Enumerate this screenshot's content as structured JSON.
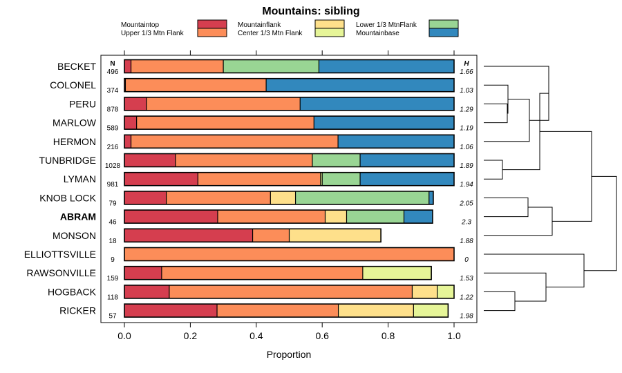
{
  "chart_data": {
    "type": "bar",
    "stacked": true,
    "orientation": "horizontal",
    "title": "Mountains: sibling",
    "xlabel": "Proportion",
    "xlim": [
      0,
      1
    ],
    "xticks": [
      "0.0",
      "0.2",
      "0.4",
      "0.6",
      "0.8",
      "1.0"
    ],
    "n_header": "N",
    "h_header": "H",
    "highlight": "ABRAM",
    "legend": [
      {
        "name": "Mountaintop",
        "color": "#d53e4f"
      },
      {
        "name": "Upper 1/3 Mtn Flank",
        "color": "#fc8d59"
      },
      {
        "name": "Mountainflank",
        "color": "#fee08b"
      },
      {
        "name": "Center 1/3 Mtn Flank",
        "color": "#e6f598"
      },
      {
        "name": "Lower 1/3 MtnFlank",
        "color": "#99d594"
      },
      {
        "name": "Mountainbase",
        "color": "#3288bd"
      }
    ],
    "rows": [
      {
        "name": "BECKET",
        "n": "496",
        "h": "1.66",
        "values": [
          0.02,
          0.28,
          0,
          0,
          0.29,
          0.41
        ]
      },
      {
        "name": "COLONEL",
        "n": "374",
        "h": "1.03",
        "values": [
          0.003,
          0.427,
          0,
          0,
          0,
          0.57
        ]
      },
      {
        "name": "PERU",
        "n": "878",
        "h": "1.29",
        "values": [
          0.067,
          0.466,
          0,
          0,
          0,
          0.467
        ]
      },
      {
        "name": "MARLOW",
        "n": "589",
        "h": "1.19",
        "values": [
          0.037,
          0.538,
          0,
          0,
          0,
          0.425
        ]
      },
      {
        "name": "HERMON",
        "n": "216",
        "h": "1.06",
        "values": [
          0.02,
          0.628,
          0,
          0,
          0,
          0.352
        ]
      },
      {
        "name": "TUNBRIDGE",
        "n": "1028",
        "h": "1.89",
        "values": [
          0.155,
          0.415,
          0,
          0,
          0.145,
          0.285
        ]
      },
      {
        "name": "LYMAN",
        "n": "981",
        "h": "1.94",
        "values": [
          0.223,
          0.372,
          0,
          0.005,
          0.115,
          0.285
        ]
      },
      {
        "name": "KNOB LOCK",
        "n": "79",
        "h": "2.05",
        "values": [
          0.127,
          0.316,
          0.076,
          0,
          0.405,
          0.013
        ]
      },
      {
        "name": "ABRAM",
        "n": "46",
        "h": "2.3",
        "values": [
          0.283,
          0.326,
          0.065,
          0,
          0.174,
          0.087
        ]
      },
      {
        "name": "MONSON",
        "n": "18",
        "h": "1.88",
        "values": [
          0.389,
          0.111,
          0.278,
          0,
          0,
          0
        ]
      },
      {
        "name": "ELLIOTTSVILLE",
        "n": "9",
        "h": "0",
        "values": [
          0,
          1.0,
          0,
          0,
          0,
          0
        ]
      },
      {
        "name": "RAWSONVILLE",
        "n": "159",
        "h": "1.53",
        "values": [
          0.113,
          0.61,
          0,
          0.208,
          0,
          0
        ]
      },
      {
        "name": "HOGBACK",
        "n": "118",
        "h": "1.22",
        "values": [
          0.136,
          0.737,
          0.076,
          0.051,
          0,
          0
        ]
      },
      {
        "name": "RICKER",
        "n": "57",
        "h": "1.98",
        "values": [
          0.281,
          0.368,
          0.228,
          0.105,
          0,
          0
        ]
      }
    ]
  }
}
